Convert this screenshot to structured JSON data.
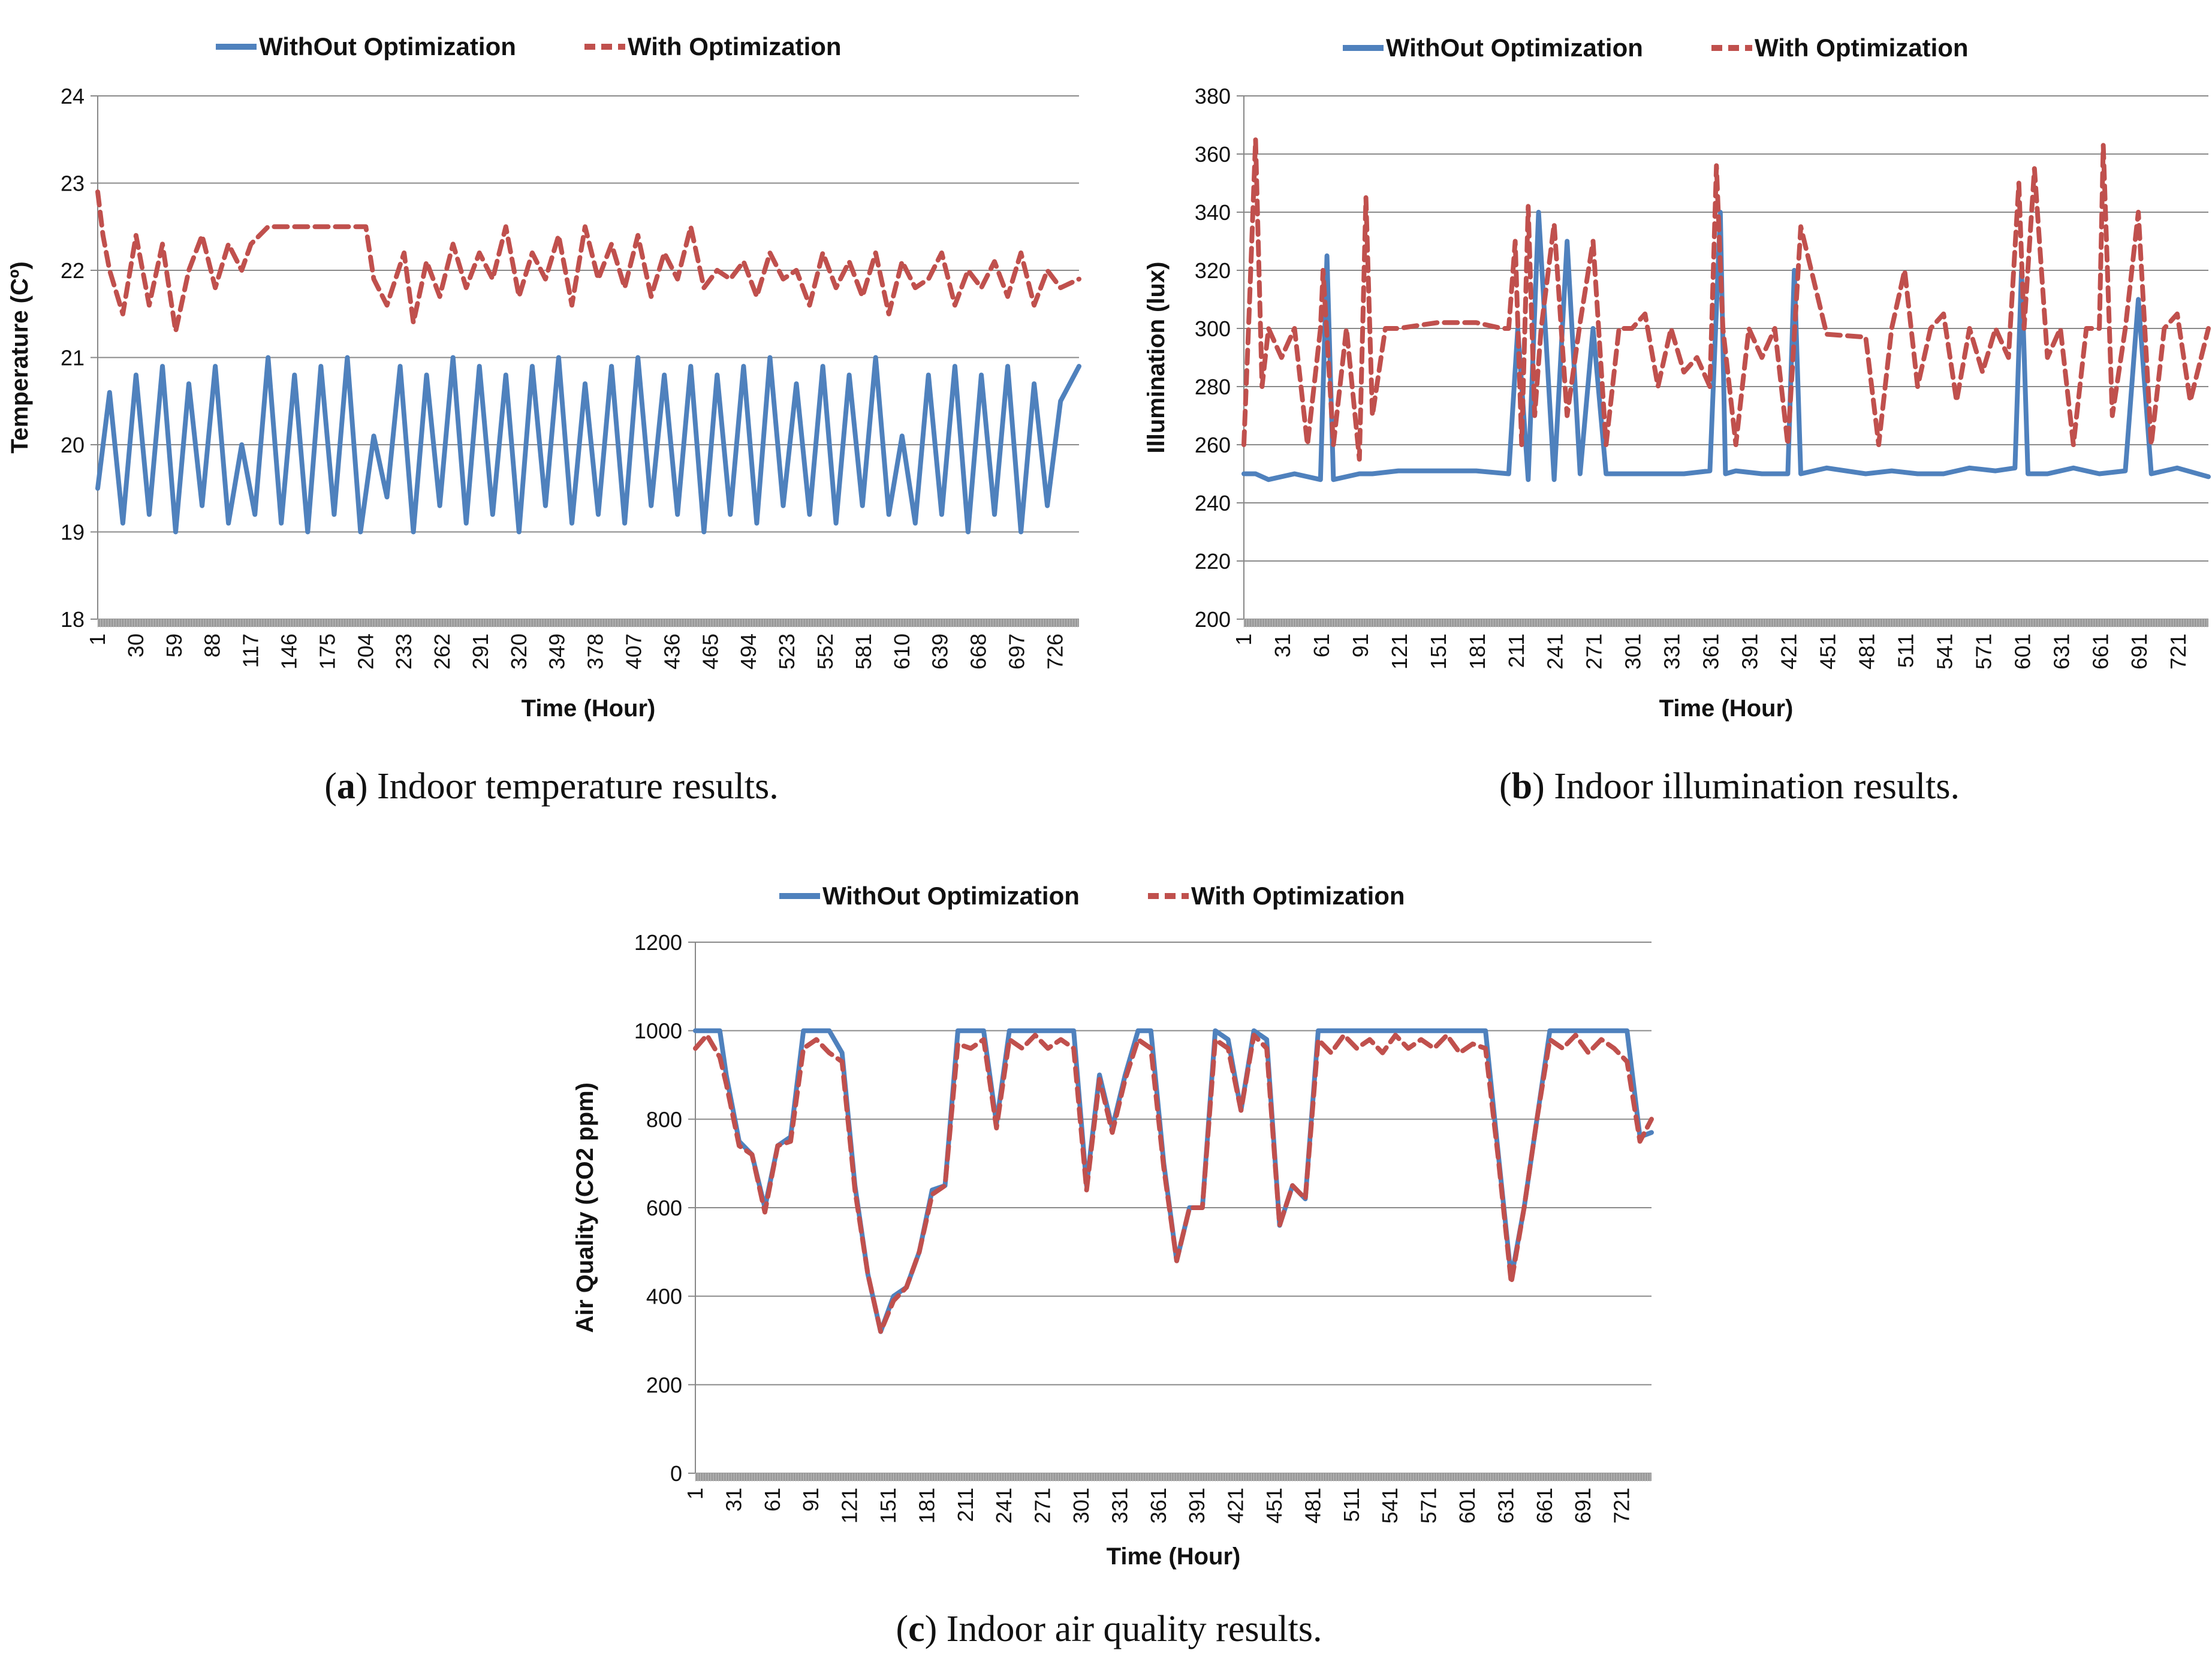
{
  "colors": {
    "without": "#4F81BD",
    "with": "#C0504D",
    "grid": "#8A8A8A",
    "axis": "#888888"
  },
  "chart_data": [
    {
      "type": "line",
      "id": "a",
      "caption_letter": "a",
      "caption_text": " Indoor temperature results.",
      "ylabel": "Temperature (Cº)",
      "xlabel": "Time (Hour)",
      "ylim": [
        18,
        24
      ],
      "yticks": [
        18,
        19,
        20,
        21,
        22,
        23,
        24
      ],
      "xlim": [
        1,
        744
      ],
      "xticks": [
        1,
        30,
        59,
        88,
        117,
        146,
        175,
        204,
        233,
        262,
        291,
        320,
        349,
        378,
        407,
        436,
        465,
        494,
        523,
        552,
        581,
        610,
        639,
        668,
        697,
        726
      ],
      "legend": [
        "WithOut Optimization",
        "With Optimization"
      ],
      "series": [
        {
          "name": "WithOut Optimization",
          "style": "solid",
          "x": [
            1,
            10,
            20,
            30,
            40,
            50,
            60,
            70,
            80,
            90,
            100,
            110,
            120,
            130,
            140,
            150,
            160,
            170,
            180,
            190,
            200,
            210,
            220,
            230,
            240,
            250,
            260,
            270,
            280,
            290,
            300,
            310,
            320,
            330,
            340,
            350,
            360,
            370,
            380,
            390,
            400,
            410,
            420,
            430,
            440,
            450,
            460,
            470,
            480,
            490,
            500,
            510,
            520,
            530,
            540,
            550,
            560,
            570,
            580,
            590,
            600,
            610,
            620,
            630,
            640,
            650,
            660,
            670,
            680,
            690,
            700,
            710,
            720,
            730,
            744
          ],
          "values": [
            19.5,
            20.6,
            19.1,
            20.8,
            19.2,
            20.9,
            19.0,
            20.7,
            19.3,
            20.9,
            19.1,
            20.0,
            19.2,
            21.0,
            19.1,
            20.8,
            19.0,
            20.9,
            19.2,
            21.0,
            19.0,
            20.1,
            19.4,
            20.9,
            19.0,
            20.8,
            19.3,
            21.0,
            19.1,
            20.9,
            19.2,
            20.8,
            19.0,
            20.9,
            19.3,
            21.0,
            19.1,
            20.7,
            19.2,
            20.9,
            19.1,
            21.0,
            19.3,
            20.8,
            19.2,
            20.9,
            19.0,
            20.8,
            19.2,
            20.9,
            19.1,
            21.0,
            19.3,
            20.7,
            19.2,
            20.9,
            19.1,
            20.8,
            19.3,
            21.0,
            19.2,
            20.1,
            19.1,
            20.8,
            19.2,
            20.9,
            19.0,
            20.8,
            19.2,
            20.9,
            19.0,
            20.7,
            19.3,
            20.5,
            20.9
          ]
        },
        {
          "name": "With Optimization",
          "style": "dashed",
          "x": [
            1,
            5,
            10,
            20,
            30,
            40,
            50,
            60,
            70,
            80,
            90,
            100,
            110,
            117,
            130,
            146,
            160,
            175,
            190,
            204,
            210,
            220,
            233,
            240,
            250,
            260,
            270,
            280,
            290,
            300,
            310,
            320,
            330,
            340,
            350,
            360,
            370,
            380,
            390,
            400,
            410,
            420,
            430,
            440,
            450,
            460,
            470,
            480,
            490,
            500,
            510,
            520,
            530,
            540,
            550,
            560,
            570,
            580,
            590,
            600,
            610,
            620,
            630,
            640,
            650,
            660,
            670,
            680,
            690,
            700,
            710,
            720,
            730,
            744
          ],
          "values": [
            22.9,
            22.4,
            22.0,
            21.5,
            22.4,
            21.6,
            22.3,
            21.3,
            22.0,
            22.4,
            21.8,
            22.3,
            22.0,
            22.3,
            22.5,
            22.5,
            22.5,
            22.5,
            22.5,
            22.5,
            21.9,
            21.6,
            22.2,
            21.4,
            22.1,
            21.7,
            22.3,
            21.8,
            22.2,
            21.9,
            22.5,
            21.7,
            22.2,
            21.9,
            22.4,
            21.6,
            22.5,
            21.9,
            22.3,
            21.8,
            22.4,
            21.7,
            22.2,
            21.9,
            22.5,
            21.8,
            22.0,
            21.9,
            22.1,
            21.7,
            22.2,
            21.9,
            22.0,
            21.6,
            22.2,
            21.8,
            22.1,
            21.7,
            22.2,
            21.5,
            22.1,
            21.8,
            21.9,
            22.2,
            21.6,
            22.0,
            21.8,
            22.1,
            21.7,
            22.2,
            21.6,
            22.0,
            21.8,
            21.9
          ]
        }
      ]
    },
    {
      "type": "line",
      "id": "b",
      "caption_letter": "b",
      "caption_text": " Indoor illumination results.",
      "ylabel": "Illumination (lux)",
      "xlabel": "Time (Hour)",
      "ylim": [
        200,
        380
      ],
      "yticks": [
        200,
        220,
        240,
        260,
        280,
        300,
        320,
        340,
        360,
        380
      ],
      "xlim": [
        1,
        744
      ],
      "xticks": [
        1,
        31,
        61,
        91,
        121,
        151,
        181,
        211,
        241,
        271,
        301,
        331,
        361,
        391,
        421,
        451,
        481,
        511,
        541,
        571,
        601,
        631,
        661,
        691,
        721
      ],
      "legend": [
        "WithOut Optimization",
        "With Optimization"
      ],
      "series": [
        {
          "name": "WithOut Optimization",
          "style": "solid",
          "x": [
            1,
            10,
            20,
            40,
            60,
            65,
            70,
            90,
            100,
            120,
            150,
            180,
            205,
            212,
            220,
            228,
            240,
            250,
            260,
            270,
            280,
            300,
            320,
            340,
            360,
            368,
            372,
            380,
            400,
            420,
            425,
            430,
            450,
            480,
            500,
            520,
            540,
            560,
            580,
            595,
            600,
            605,
            620,
            640,
            660,
            680,
            690,
            700,
            720,
            744
          ],
          "values": [
            250,
            250,
            248,
            250,
            248,
            325,
            248,
            250,
            250,
            251,
            251,
            251,
            250,
            300,
            248,
            340,
            248,
            330,
            250,
            300,
            250,
            250,
            250,
            250,
            251,
            340,
            250,
            251,
            250,
            250,
            320,
            250,
            252,
            250,
            251,
            250,
            250,
            252,
            251,
            252,
            320,
            250,
            250,
            252,
            250,
            251,
            310,
            250,
            252,
            249
          ]
        },
        {
          "name": "With Optimization",
          "style": "dashed",
          "x": [
            1,
            5,
            10,
            15,
            20,
            30,
            40,
            50,
            60,
            62,
            70,
            80,
            90,
            95,
            100,
            110,
            120,
            150,
            180,
            200,
            205,
            210,
            215,
            220,
            225,
            230,
            240,
            250,
            260,
            270,
            280,
            290,
            300,
            310,
            320,
            330,
            340,
            350,
            360,
            365,
            370,
            380,
            390,
            400,
            410,
            420,
            430,
            450,
            480,
            490,
            500,
            510,
            520,
            530,
            540,
            550,
            560,
            570,
            580,
            590,
            598,
            602,
            610,
            620,
            630,
            640,
            650,
            660,
            663,
            670,
            680,
            690,
            700,
            710,
            720,
            730,
            744
          ],
          "values": [
            260,
            305,
            365,
            280,
            300,
            290,
            300,
            260,
            300,
            320,
            260,
            300,
            255,
            345,
            270,
            300,
            300,
            302,
            302,
            300,
            300,
            330,
            260,
            342,
            270,
            300,
            336,
            270,
            302,
            330,
            260,
            300,
            300,
            305,
            280,
            300,
            285,
            290,
            280,
            356,
            300,
            260,
            300,
            290,
            300,
            260,
            335,
            298,
            297,
            260,
            300,
            320,
            280,
            300,
            305,
            275,
            300,
            285,
            300,
            290,
            350,
            300,
            355,
            290,
            300,
            260,
            300,
            300,
            363,
            270,
            300,
            340,
            260,
            300,
            305,
            275,
            300
          ]
        }
      ]
    },
    {
      "type": "line",
      "id": "c",
      "caption_letter": "c",
      "caption_text": " Indoor air quality results.",
      "ylabel": "Air Quality (CO2 ppm)",
      "xlabel": "Time (Hour)",
      "ylim": [
        0,
        1200
      ],
      "yticks": [
        0,
        200,
        400,
        600,
        800,
        1000,
        1200
      ],
      "xlim": [
        1,
        744
      ],
      "xticks": [
        1,
        31,
        61,
        91,
        121,
        151,
        181,
        211,
        241,
        271,
        301,
        331,
        361,
        391,
        421,
        451,
        481,
        511,
        541,
        571,
        601,
        631,
        661,
        691,
        721
      ],
      "legend": [
        "WithOut Optimization",
        "With Optimization"
      ],
      "series": [
        {
          "name": "WithOut Optimization",
          "style": "solid",
          "x": [
            1,
            10,
            20,
            25,
            35,
            45,
            55,
            65,
            75,
            85,
            95,
            105,
            115,
            125,
            135,
            145,
            155,
            165,
            175,
            185,
            195,
            205,
            215,
            225,
            235,
            245,
            255,
            265,
            275,
            285,
            295,
            305,
            315,
            325,
            335,
            345,
            355,
            365,
            375,
            385,
            395,
            405,
            415,
            425,
            435,
            445,
            455,
            465,
            475,
            485,
            495,
            505,
            515,
            525,
            535,
            545,
            555,
            565,
            575,
            585,
            595,
            605,
            615,
            625,
            635,
            645,
            655,
            665,
            675,
            685,
            695,
            705,
            715,
            725,
            735,
            744
          ],
          "values": [
            1000,
            1000,
            1000,
            900,
            750,
            720,
            600,
            740,
            760,
            1000,
            1000,
            1000,
            950,
            650,
            450,
            320,
            400,
            420,
            500,
            640,
            650,
            1000,
            1000,
            1000,
            790,
            1000,
            1000,
            1000,
            1000,
            1000,
            1000,
            650,
            900,
            780,
            900,
            1000,
            1000,
            700,
            480,
            600,
            600,
            1000,
            980,
            820,
            1000,
            980,
            560,
            650,
            620,
            1000,
            1000,
            1000,
            1000,
            1000,
            1000,
            1000,
            1000,
            1000,
            1000,
            1000,
            1000,
            1000,
            1000,
            720,
            440,
            600,
            800,
            1000,
            1000,
            1000,
            1000,
            1000,
            1000,
            1000,
            760,
            770
          ]
        },
        {
          "name": "With Optimization",
          "style": "dashed",
          "x": [
            1,
            10,
            20,
            25,
            35,
            45,
            55,
            65,
            75,
            85,
            95,
            105,
            115,
            125,
            135,
            145,
            155,
            165,
            175,
            185,
            195,
            205,
            215,
            225,
            235,
            245,
            255,
            265,
            275,
            285,
            295,
            305,
            315,
            325,
            335,
            345,
            355,
            365,
            375,
            385,
            395,
            405,
            415,
            425,
            435,
            445,
            455,
            465,
            475,
            485,
            495,
            505,
            515,
            525,
            535,
            545,
            555,
            565,
            575,
            585,
            595,
            605,
            615,
            625,
            635,
            645,
            655,
            665,
            675,
            685,
            695,
            705,
            715,
            725,
            735,
            744
          ],
          "values": [
            960,
            990,
            940,
            880,
            740,
            720,
            590,
            740,
            750,
            960,
            980,
            950,
            930,
            640,
            450,
            320,
            390,
            420,
            500,
            630,
            650,
            970,
            960,
            980,
            780,
            980,
            960,
            990,
            960,
            980,
            960,
            640,
            890,
            770,
            890,
            980,
            960,
            690,
            480,
            600,
            600,
            980,
            960,
            820,
            990,
            960,
            560,
            650,
            620,
            980,
            950,
            990,
            960,
            980,
            950,
            990,
            960,
            980,
            960,
            990,
            950,
            970,
            960,
            710,
            430,
            600,
            800,
            980,
            960,
            990,
            950,
            980,
            960,
            930,
            750,
            800
          ]
        }
      ]
    }
  ]
}
